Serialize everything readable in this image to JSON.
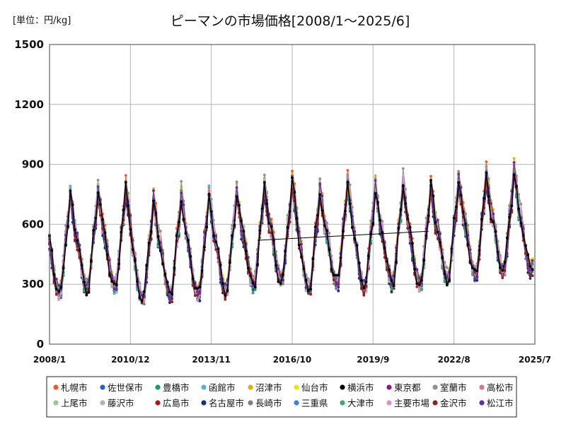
{
  "chart_data": {
    "type": "line",
    "title": "ピーマンの市場価格[2008/1～2025/6]",
    "unit_label": "[単位：円/kg]",
    "xlabel": "",
    "ylabel": "",
    "ylim": [
      0,
      1500
    ],
    "yticks": [
      "0",
      "300",
      "600",
      "900",
      "1200",
      "1500"
    ],
    "xlim": [
      "2008-01",
      "2025-07"
    ],
    "xticks": [
      {
        "label": "2008/1",
        "date": "2008-01"
      },
      {
        "label": "2010/12",
        "date": "2010-12"
      },
      {
        "label": "2013/11",
        "date": "2013-11"
      },
      {
        "label": "2016/10",
        "date": "2016-10"
      },
      {
        "label": "2019/9",
        "date": "2019-09"
      },
      {
        "label": "2022/8",
        "date": "2022-08"
      },
      {
        "label": "2025/7",
        "date": "2025-07"
      }
    ],
    "grid": true,
    "legend_position": "bottom",
    "series_base": {
      "name": "横浜市",
      "period": [
        "2008-01",
        "2025-06"
      ],
      "seasonal_monthly": [
        540,
        470,
        380,
        320,
        290,
        300,
        420,
        560,
        640,
        780,
        700,
        600
      ],
      "yearly_offset": [
        {
          "year": 2008,
          "offset": -30
        },
        {
          "year": 2009,
          "offset": -10
        },
        {
          "year": 2010,
          "offset": 0
        },
        {
          "year": 2011,
          "offset": -60
        },
        {
          "year": 2012,
          "offset": -40
        },
        {
          "year": 2013,
          "offset": -40
        },
        {
          "year": 2014,
          "offset": -20
        },
        {
          "year": 2015,
          "offset": 10
        },
        {
          "year": 2016,
          "offset": 30
        },
        {
          "year": 2017,
          "offset": -10
        },
        {
          "year": 2018,
          "offset": 20
        },
        {
          "year": 2019,
          "offset": 0
        },
        {
          "year": 2020,
          "offset": 20
        },
        {
          "year": 2021,
          "offset": 10
        },
        {
          "year": 2022,
          "offset": 40
        },
        {
          "year": 2023,
          "offset": 60
        },
        {
          "year": 2024,
          "offset": 80
        },
        {
          "year": 2025,
          "offset": 90
        }
      ]
    },
    "series": [
      {
        "name": "札幌市",
        "color": "#f05a28",
        "scale": 1.05
      },
      {
        "name": "佐世保市",
        "color": "#1f5fd6",
        "scale": 0.97
      },
      {
        "name": "豊橋市",
        "color": "#12a06a",
        "scale": 1.0
      },
      {
        "name": "函館市",
        "color": "#5aaee0",
        "scale": 1.02
      },
      {
        "name": "沼津市",
        "color": "#f4a700",
        "scale": 1.04
      },
      {
        "name": "仙台市",
        "color": "#f2e200",
        "scale": 1.03
      },
      {
        "name": "横浜市",
        "color": "#000000",
        "scale": 1.0
      },
      {
        "name": "東京都",
        "color": "#8a1a8a",
        "scale": 0.96
      },
      {
        "name": "室蘭市",
        "color": "#8a9295",
        "scale": 1.06
      },
      {
        "name": "高松市",
        "color": "#e0708a",
        "scale": 1.0
      },
      {
        "name": "上尾市",
        "color": "#9ac88a",
        "scale": 0.98
      },
      {
        "name": "藤沢市",
        "color": "#a8b8b0",
        "scale": 1.01
      },
      {
        "name": "広島市",
        "color": "#b01818",
        "scale": 0.97
      },
      {
        "name": "名古屋市",
        "color": "#13307a",
        "scale": 0.95
      },
      {
        "name": "長崎市",
        "color": "#7a7f8a",
        "scale": 0.99
      },
      {
        "name": "三重県",
        "color": "#3f7fe0",
        "scale": 1.0
      },
      {
        "name": "大津市",
        "color": "#3aa870",
        "scale": 0.98
      },
      {
        "name": "主要市場",
        "color": "#d890d0",
        "scale": 1.0
      },
      {
        "name": "金沢市",
        "color": "#8a2424",
        "scale": 0.96
      },
      {
        "name": "松江市",
        "color": "#6a2aa0",
        "scale": 1.02
      }
    ],
    "annotations": [
      {
        "type": "connector",
        "series": "横浜市",
        "from": {
          "x": "2015-07",
          "y": 520
        },
        "to": {
          "x": "2021-09",
          "y": 565
        }
      }
    ]
  }
}
